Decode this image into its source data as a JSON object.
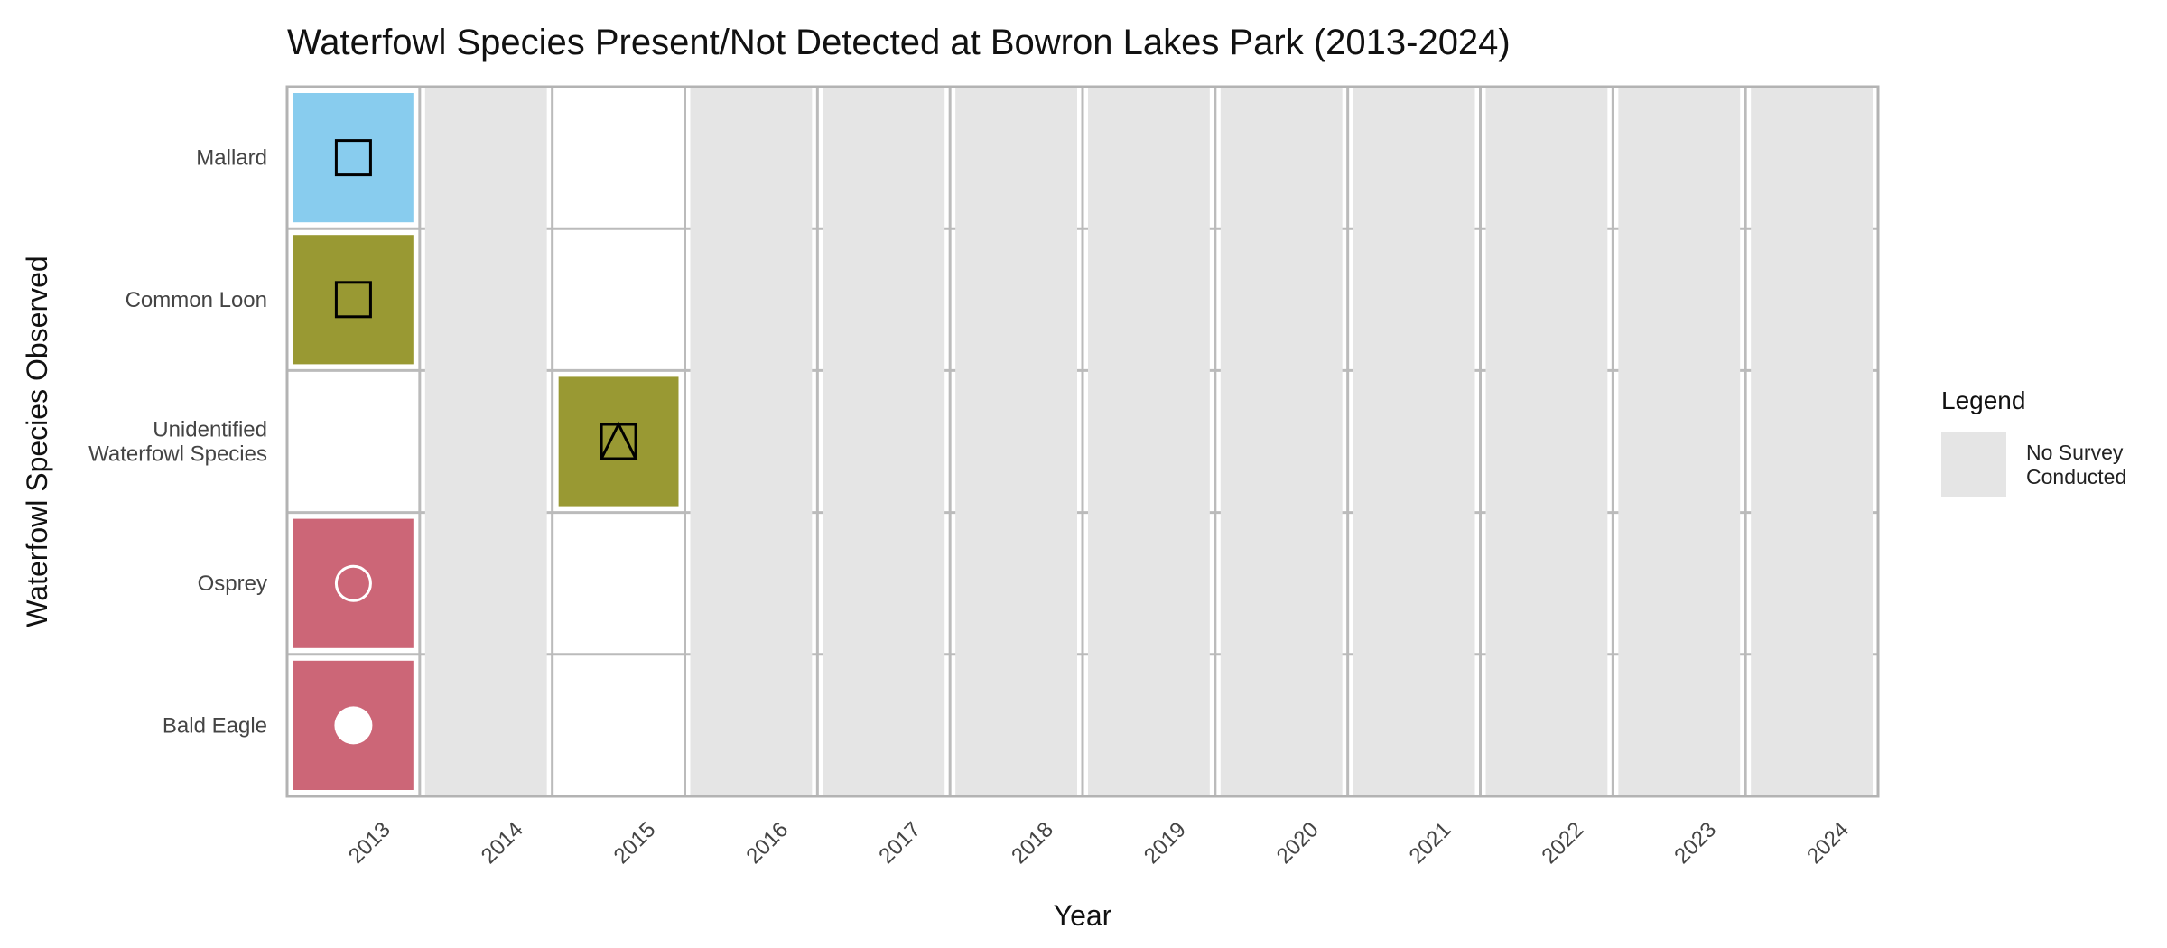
{
  "chart_data": {
    "type": "heatmap",
    "title": "Waterfowl Species Present/Not Detected at Bowron Lakes Park (2013-2024)",
    "xlabel": "Year",
    "ylabel": "Waterfowl Species Observed",
    "x": [
      "2013",
      "2014",
      "2015",
      "2016",
      "2017",
      "2018",
      "2019",
      "2020",
      "2021",
      "2022",
      "2023",
      "2024"
    ],
    "y": [
      [
        "Mallard"
      ],
      [
        "Common Loon"
      ],
      [
        "Unidentified",
        "Waterfowl Species"
      ],
      [
        "Osprey"
      ],
      [
        "Bald Eagle"
      ]
    ],
    "no_survey_years": [
      "2014",
      "2016",
      "2017",
      "2018",
      "2019",
      "2020",
      "2021",
      "2022",
      "2023",
      "2024"
    ],
    "cells": [
      {
        "year": "2013",
        "row": 0,
        "fill": "#88ccee",
        "symbol": "open-square",
        "symbol_color": "#000000"
      },
      {
        "year": "2013",
        "row": 1,
        "fill": "#999933",
        "symbol": "open-square",
        "symbol_color": "#000000"
      },
      {
        "year": "2015",
        "row": 2,
        "fill": "#999933",
        "symbol": "square-triangle",
        "symbol_color": "#000000"
      },
      {
        "year": "2013",
        "row": 3,
        "fill": "#cc6677",
        "symbol": "open-circle",
        "symbol_color": "#ffffff"
      },
      {
        "year": "2013",
        "row": 4,
        "fill": "#cc6677",
        "symbol": "filled-circle",
        "symbol_color": "#ffffff"
      }
    ],
    "legend": {
      "title": "Legend",
      "position": "right",
      "entries": [
        {
          "label": [
            "No Survey",
            "Conducted"
          ],
          "color": "#e5e5e5"
        }
      ]
    },
    "colors": {
      "no_survey": "#e5e5e5",
      "grid": "#bbbbbb",
      "panel_border": "#b3b3b3"
    }
  }
}
